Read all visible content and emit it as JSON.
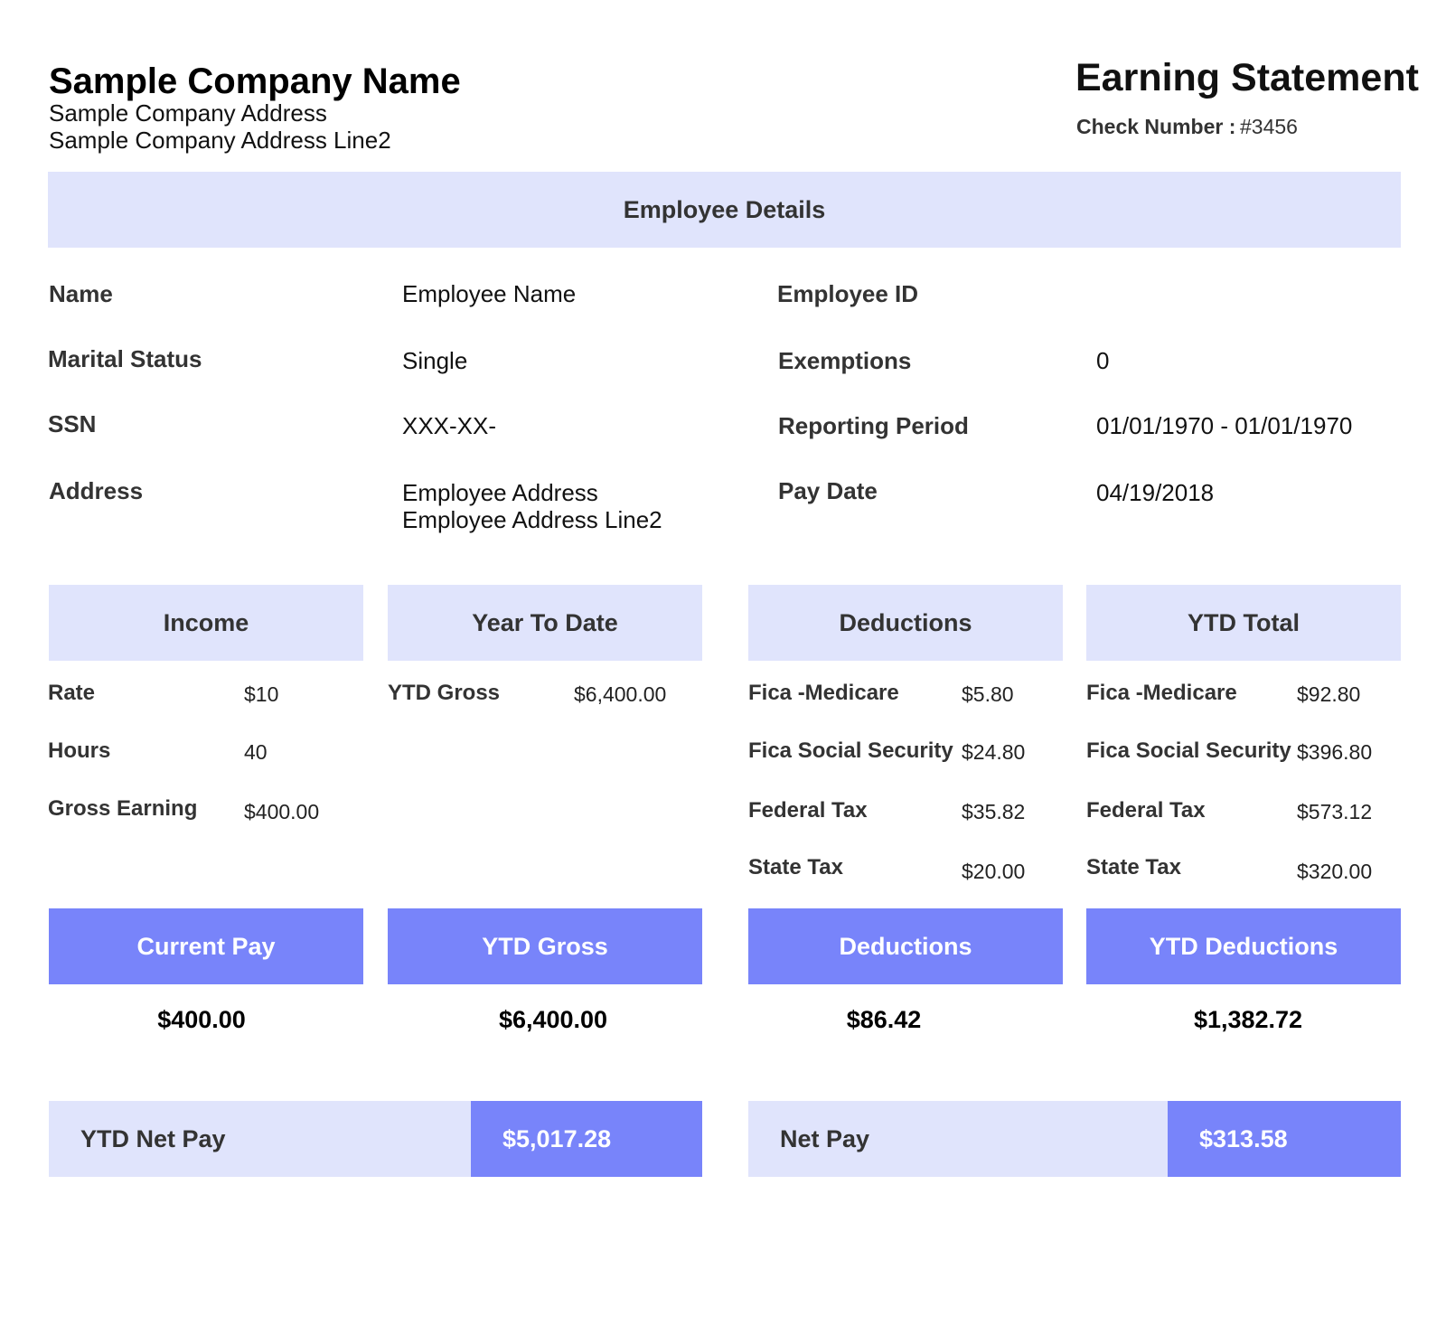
{
  "header": {
    "company_name": "Sample Company Name",
    "company_address": "Sample Company Address",
    "company_address_line2": "Sample Company Address Line2",
    "title": "Earning Statement",
    "check_label": "Check Number :",
    "check_number": "#3456"
  },
  "employee_details": {
    "heading": "Employee Details",
    "name_label": "Name",
    "name_value": "Employee Name",
    "employee_id_label": "Employee ID",
    "employee_id_value": "",
    "marital_label": "Marital Status",
    "marital_value": "Single",
    "exemptions_label": "Exemptions",
    "exemptions_value": "0",
    "ssn_label": "SSN",
    "ssn_value": "XXX-XX-",
    "period_label": "Reporting Period",
    "period_value": "01/01/1970 - 01/01/1970",
    "address_label": "Address",
    "address_line1": "Employee Address",
    "address_line2": "Employee Address Line2",
    "pay_date_label": "Pay Date",
    "pay_date_value": "04/19/2018"
  },
  "income": {
    "heading": "Income",
    "rows": [
      {
        "label": "Rate",
        "value": "$10"
      },
      {
        "label": "Hours",
        "value": "40"
      },
      {
        "label": "Gross Earning",
        "value": "$400.00"
      }
    ]
  },
  "year_to_date": {
    "heading": "Year To Date",
    "rows": [
      {
        "label": "YTD Gross",
        "value": "$6,400.00"
      }
    ]
  },
  "deductions": {
    "heading": "Deductions",
    "rows": [
      {
        "label": "Fica -Medicare",
        "value": "$5.80"
      },
      {
        "label": "Fica Social Security",
        "value": "$24.80"
      },
      {
        "label": "Federal Tax",
        "value": "$35.82"
      },
      {
        "label": "State Tax",
        "value": "$20.00"
      }
    ]
  },
  "ytd_total": {
    "heading": "YTD Total",
    "rows": [
      {
        "label": "Fica -Medicare",
        "value": "$92.80"
      },
      {
        "label": "Fica Social Security",
        "value": "$396.80"
      },
      {
        "label": "Federal Tax",
        "value": "$573.12"
      },
      {
        "label": "State Tax",
        "value": "$320.00"
      }
    ]
  },
  "totals": {
    "current_pay_label": "Current Pay",
    "current_pay_value": "$400.00",
    "ytd_gross_label": "YTD Gross",
    "ytd_gross_value": "$6,400.00",
    "deductions_label": "Deductions",
    "deductions_value": "$86.42",
    "ytd_deductions_label": "YTD Deductions",
    "ytd_deductions_value": "$1,382.72"
  },
  "net": {
    "ytd_net_label": "YTD Net Pay",
    "ytd_net_value": "$5,017.28",
    "net_label": "Net Pay",
    "net_value": "$313.58"
  },
  "colors": {
    "light_band": "#e0e4fc",
    "dark_band": "#7884fa"
  }
}
